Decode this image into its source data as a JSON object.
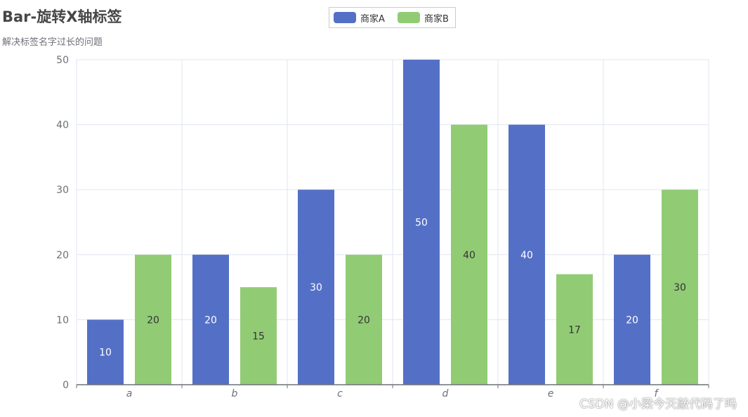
{
  "title": "Bar-旋转X轴标签",
  "subtitle": "解决标签名字过长的问题",
  "watermark": "CSDN @小梁今天敲代码了吗",
  "chart_data": {
    "type": "bar",
    "categories": [
      "a",
      "b",
      "c",
      "d",
      "e",
      "f"
    ],
    "series": [
      {
        "name": "商家A",
        "values": [
          10,
          20,
          30,
          50,
          40,
          20
        ],
        "color": "#5470c6",
        "label_color": "#ffffff"
      },
      {
        "name": "商家B",
        "values": [
          20,
          15,
          20,
          40,
          17,
          30
        ],
        "color": "#91cc75",
        "label_color": "#333333"
      }
    ],
    "ylim": [
      0,
      50
    ],
    "yticks": [
      0,
      10,
      20,
      30,
      40,
      50
    ],
    "grid": true,
    "legend_position": "top-center",
    "data_labels": "inside-middle"
  }
}
